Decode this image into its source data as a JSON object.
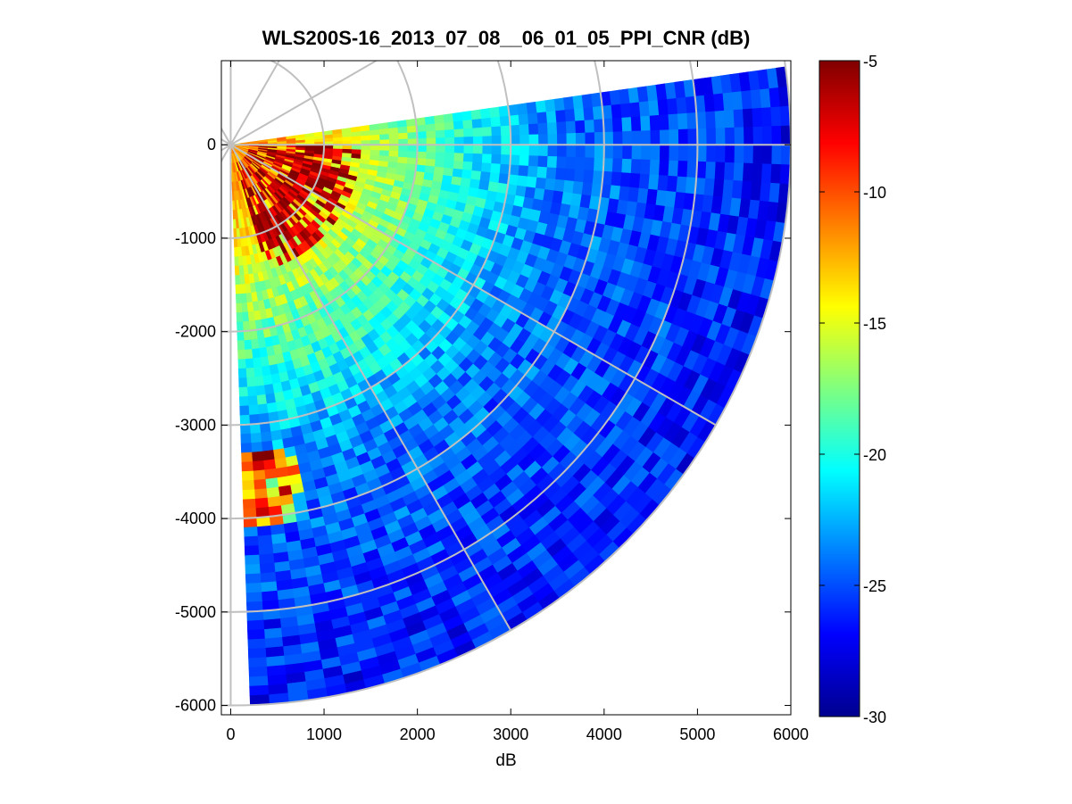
{
  "chart_data": {
    "type": "heatmap",
    "subtype": "polar-ppi-sector",
    "title": "WLS200S-16_2013_07_08__06_01_05_PPI_CNR (dB)",
    "xlabel": "dB",
    "ylabel": "",
    "xlim": [
      -100,
      6000
    ],
    "ylim": [
      -6100,
      900
    ],
    "x_ticks": [
      0,
      1000,
      2000,
      3000,
      4000,
      5000,
      6000
    ],
    "y_ticks": [
      0,
      -1000,
      -2000,
      -3000,
      -4000,
      -5000,
      -6000
    ],
    "x_tick_labels": [
      "0",
      "1000",
      "2000",
      "3000",
      "4000",
      "5000",
      "6000"
    ],
    "y_tick_labels": [
      "0",
      "-1000",
      "-2000",
      "-3000",
      "-4000",
      "-5000",
      "-6000"
    ],
    "sector": {
      "origin": [
        0,
        0
      ],
      "azimuth_start_deg": 8,
      "azimuth_end_deg": -88,
      "max_range": 6000
    },
    "grid": {
      "shown": true,
      "color": "#c0c0c0",
      "range_rings": [
        1000,
        2000,
        3000,
        4000,
        5000,
        6000
      ],
      "spokes_deg": [
        0,
        30,
        60,
        90,
        120,
        150,
        180,
        210,
        240,
        270,
        300,
        330
      ]
    },
    "colorbar": {
      "range": [
        -30,
        -5
      ],
      "ticks": [
        -5,
        -10,
        -15,
        -20,
        -25,
        -30
      ],
      "tick_labels": [
        "-5",
        "-10",
        "-15",
        "-20",
        "-25",
        "-30"
      ],
      "colormap": "jet"
    },
    "regions": [
      {
        "description": "near-range strong return",
        "range": [
          0,
          1500
        ],
        "azimuth_deg": [
          -75,
          0
        ],
        "value_db": -6
      },
      {
        "description": "near-range moderate band",
        "range": [
          0,
          2000
        ],
        "azimuth_deg": [
          -88,
          8
        ],
        "value_db": -15
      },
      {
        "description": "mid-range band",
        "range": [
          2000,
          3500
        ],
        "azimuth_deg": [
          -88,
          8
        ],
        "value_db": -21
      },
      {
        "description": "far-range background",
        "range": [
          3500,
          6000
        ],
        "azimuth_deg": [
          -88,
          8
        ],
        "value_db": -26
      },
      {
        "description": "isolated hot spot",
        "x": [
          200,
          700
        ],
        "y": [
          -4000,
          -3300
        ],
        "value_db": -7
      }
    ]
  }
}
